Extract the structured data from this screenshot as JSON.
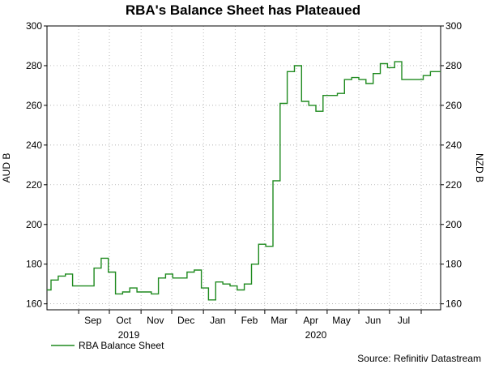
{
  "chart_data": {
    "type": "line",
    "title": "RBA's Balance Sheet has Plateaued",
    "ylabel_left": "AUD B",
    "ylabel_right": "NZD B",
    "source": "Source: Refinitiv Datastream",
    "ylim": [
      157,
      300
    ],
    "yticks": [
      160,
      180,
      200,
      220,
      240,
      260,
      280,
      300
    ],
    "grid": true,
    "legend": "bottom-left",
    "x_start": "2019-08-01",
    "x_end": "2020-08-20",
    "month_ticks": [
      {
        "label": "Sep",
        "date": "2019-09-15"
      },
      {
        "label": "Oct",
        "date": "2019-10-15"
      },
      {
        "label": "Nov",
        "date": "2019-11-15"
      },
      {
        "label": "Dec",
        "date": "2019-12-15"
      },
      {
        "label": "Jan",
        "date": "2020-01-15"
      },
      {
        "label": "Feb",
        "date": "2020-02-15"
      },
      {
        "label": "Mar",
        "date": "2020-03-15"
      },
      {
        "label": "Apr",
        "date": "2020-04-15"
      },
      {
        "label": "May",
        "date": "2020-05-15"
      },
      {
        "label": "Jun",
        "date": "2020-06-15"
      },
      {
        "label": "Jul",
        "date": "2020-07-15"
      }
    ],
    "year_labels": [
      {
        "label": "2019",
        "date": "2019-10-20"
      },
      {
        "label": "2020",
        "date": "2020-04-20"
      }
    ],
    "series": [
      {
        "name": "RBA Balance Sheet",
        "color": "#1f8a1f",
        "points": [
          [
            "2019-08-01",
            167
          ],
          [
            "2019-08-05",
            172
          ],
          [
            "2019-08-12",
            174
          ],
          [
            "2019-08-19",
            175
          ],
          [
            "2019-08-26",
            169
          ],
          [
            "2019-09-02",
            169
          ],
          [
            "2019-09-09",
            169
          ],
          [
            "2019-09-16",
            178
          ],
          [
            "2019-09-23",
            183
          ],
          [
            "2019-09-30",
            176
          ],
          [
            "2019-10-07",
            165
          ],
          [
            "2019-10-14",
            166
          ],
          [
            "2019-10-21",
            168
          ],
          [
            "2019-10-28",
            166
          ],
          [
            "2019-11-04",
            166
          ],
          [
            "2019-11-11",
            165
          ],
          [
            "2019-11-18",
            173
          ],
          [
            "2019-11-25",
            175
          ],
          [
            "2019-12-02",
            173
          ],
          [
            "2019-12-09",
            173
          ],
          [
            "2019-12-16",
            176
          ],
          [
            "2019-12-23",
            177
          ],
          [
            "2019-12-30",
            168
          ],
          [
            "2020-01-06",
            162
          ],
          [
            "2020-01-13",
            171
          ],
          [
            "2020-01-20",
            170
          ],
          [
            "2020-01-27",
            169
          ],
          [
            "2020-02-03",
            167
          ],
          [
            "2020-02-10",
            170
          ],
          [
            "2020-02-17",
            180
          ],
          [
            "2020-02-24",
            190
          ],
          [
            "2020-03-02",
            189
          ],
          [
            "2020-03-09",
            222
          ],
          [
            "2020-03-16",
            261
          ],
          [
            "2020-03-23",
            277
          ],
          [
            "2020-03-30",
            280
          ],
          [
            "2020-04-06",
            262
          ],
          [
            "2020-04-13",
            260
          ],
          [
            "2020-04-20",
            257
          ],
          [
            "2020-04-27",
            265
          ],
          [
            "2020-05-04",
            265
          ],
          [
            "2020-05-11",
            266
          ],
          [
            "2020-05-18",
            273
          ],
          [
            "2020-05-25",
            274
          ],
          [
            "2020-06-01",
            273
          ],
          [
            "2020-06-08",
            271
          ],
          [
            "2020-06-15",
            276
          ],
          [
            "2020-06-22",
            281
          ],
          [
            "2020-06-29",
            279
          ],
          [
            "2020-07-06",
            282
          ],
          [
            "2020-07-13",
            273
          ],
          [
            "2020-07-20",
            273
          ],
          [
            "2020-07-27",
            273
          ],
          [
            "2020-08-03",
            275
          ],
          [
            "2020-08-10",
            277
          ],
          [
            "2020-08-17",
            277
          ]
        ]
      }
    ]
  }
}
